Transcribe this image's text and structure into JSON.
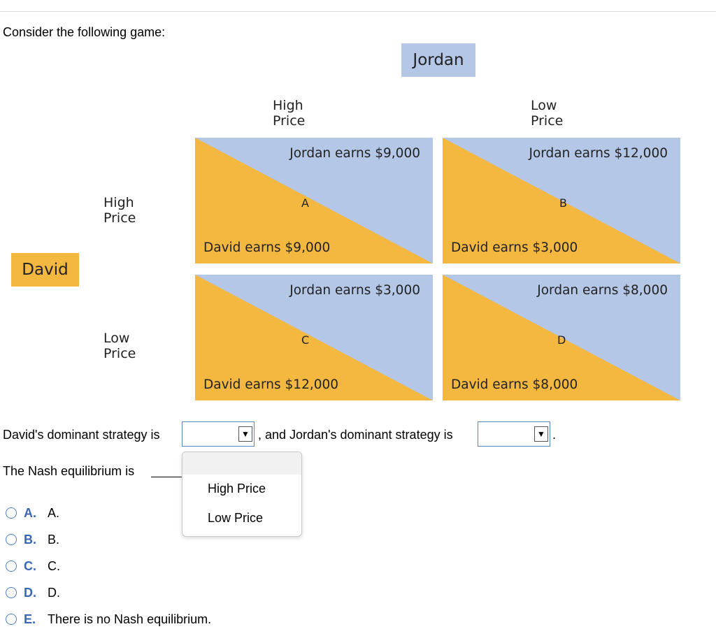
{
  "prompt": "Consider the following game:",
  "game": {
    "column_player": "Jordan",
    "row_player": "David",
    "column_strategies": [
      "High Price",
      "Low Price"
    ],
    "row_strategies": [
      "High Price",
      "Low Price"
    ],
    "cells": [
      {
        "label": "A",
        "jordan_text": "Jordan earns $9,000",
        "david_text": "David earns $9,000"
      },
      {
        "label": "B",
        "jordan_text": "Jordan earns $12,000",
        "david_text": "David earns $3,000"
      },
      {
        "label": "C",
        "jordan_text": "Jordan earns $3,000",
        "david_text": "David earns $12,000"
      },
      {
        "label": "D",
        "jordan_text": "Jordan earns $8,000",
        "david_text": "David earns $8,000"
      }
    ],
    "colors": {
      "jordan_fill": "#b4c7e7",
      "david_fill": "#f4b840"
    }
  },
  "question1": {
    "text_before": "David's dominant strategy is",
    "text_middle": ", and Jordan's dominant strategy is",
    "text_after": ".",
    "david_select_value": "",
    "jordan_select_value": "",
    "arrow_glyph": "▼"
  },
  "dropdown": {
    "options": [
      "High Price",
      "Low Price"
    ]
  },
  "question2": {
    "text": "The Nash equilibrium is"
  },
  "choices": [
    {
      "letter": "A.",
      "text": "A."
    },
    {
      "letter": "B.",
      "text": "B."
    },
    {
      "letter": "C.",
      "text": "C."
    },
    {
      "letter": "D.",
      "text": "D."
    },
    {
      "letter": "E.",
      "text": "There is no Nash equilibrium."
    }
  ],
  "accent_color": "#3a66b8"
}
